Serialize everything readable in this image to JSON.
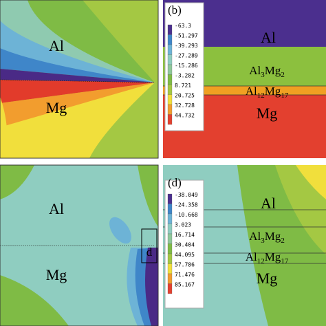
{
  "panels": [
    {
      "regions": [
        {
          "text": [
            "Al"
          ]
        },
        {
          "text": [
            "Mg"
          ]
        }
      ]
    },
    {
      "label": "(b)",
      "legend": [
        "-63.3",
        "-51.297",
        "-39.293",
        "-27.289",
        "-15.286",
        "-3.282",
        "8.721",
        "20.725",
        "32.728",
        "44.732"
      ],
      "regions": [
        {
          "text": [
            "Al"
          ]
        },
        {
          "text": [
            "Al",
            "3",
            "Mg",
            "2"
          ]
        },
        {
          "text": [
            "Al",
            "12",
            "Mg",
            "17"
          ]
        },
        {
          "text": [
            "Mg"
          ]
        }
      ]
    },
    {
      "box_label": "d",
      "regions": [
        {
          "text": [
            "Al"
          ]
        },
        {
          "text": [
            "Mg"
          ]
        }
      ]
    },
    {
      "label": "(d)",
      "legend": [
        "-38.049",
        "-24.358",
        "-10.668",
        "3.023",
        "16.714",
        "30.404",
        "44.095",
        "57.786",
        "71.476",
        "85.167"
      ],
      "regions": [
        {
          "text": [
            "Al"
          ]
        },
        {
          "text": [
            "Al",
            "3",
            "Mg",
            "2"
          ]
        },
        {
          "text": [
            "Al",
            "12",
            "Mg",
            "17"
          ]
        },
        {
          "text": [
            "Mg"
          ]
        }
      ]
    }
  ]
}
